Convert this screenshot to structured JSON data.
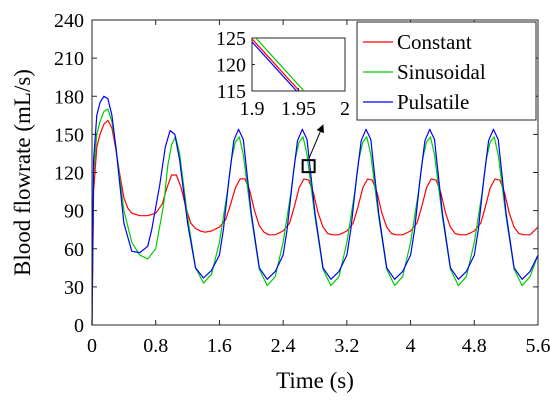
{
  "chart_data": {
    "type": "line",
    "xlabel": "Time (s)",
    "ylabel": "Blood flowrate (mL/s)",
    "xlim": [
      0,
      5.6
    ],
    "ylim": [
      0,
      240
    ],
    "xticks": [
      0,
      0.8,
      1.6,
      2.4,
      3.2,
      4,
      4.8,
      5.6
    ],
    "xtick_labels": [
      "0",
      "0.8",
      "1.6",
      "2.4",
      "3.2",
      "4",
      "4.8",
      "5.6"
    ],
    "yticks": [
      0,
      30,
      60,
      90,
      120,
      150,
      180,
      210,
      240
    ],
    "ytick_labels": [
      "0",
      "30",
      "60",
      "90",
      "120",
      "150",
      "180",
      "210",
      "240"
    ],
    "grid": false,
    "legend_position": "top-right",
    "series": [
      {
        "name": "Constant",
        "color": "#ff0000",
        "x": [
          0,
          0.02,
          0.06,
          0.1,
          0.15,
          0.2,
          0.25,
          0.3,
          0.35,
          0.4,
          0.45,
          0.5,
          0.55,
          0.6,
          0.7,
          0.8,
          0.88,
          0.94,
          1.0,
          1.06,
          1.12,
          1.18,
          1.24,
          1.3,
          1.36,
          1.42,
          1.5,
          1.6,
          1.68,
          1.74,
          1.8,
          1.86,
          1.92,
          1.98,
          2.04,
          2.1,
          2.16,
          2.22,
          2.3,
          2.4,
          2.48,
          2.54,
          2.6,
          2.66,
          2.72,
          2.78,
          2.84,
          2.9,
          2.96,
          3.02,
          3.1,
          3.2,
          3.28,
          3.34,
          3.4,
          3.46,
          3.52,
          3.58,
          3.64,
          3.7,
          3.76,
          3.82,
          3.9,
          4.0,
          4.08,
          4.14,
          4.2,
          4.26,
          4.32,
          4.38,
          4.44,
          4.5,
          4.56,
          4.62,
          4.7,
          4.8,
          4.88,
          4.94,
          5.0,
          5.06,
          5.12,
          5.18,
          5.24,
          5.3,
          5.36,
          5.42,
          5.5,
          5.6
        ],
        "y": [
          0,
          105,
          140,
          150,
          158,
          161,
          155,
          138,
          118,
          100,
          92,
          88,
          87,
          86,
          86,
          88,
          95,
          108,
          118,
          118,
          108,
          92,
          80,
          76,
          74,
          73,
          74,
          77,
          83,
          95,
          108,
          115,
          115,
          106,
          90,
          78,
          73,
          71,
          71,
          74,
          80,
          93,
          108,
          115,
          114,
          104,
          88,
          77,
          72,
          71,
          71,
          74,
          80,
          93,
          108,
          115,
          114,
          104,
          88,
          77,
          72,
          71,
          71,
          74,
          80,
          93,
          108,
          115,
          114,
          104,
          88,
          77,
          72,
          71,
          71,
          74,
          80,
          93,
          108,
          115,
          114,
          104,
          88,
          77,
          72,
          71,
          71,
          77
        ]
      },
      {
        "name": "Sinusoidal",
        "color": "#00cc00",
        "x": [
          0,
          0.02,
          0.06,
          0.1,
          0.15,
          0.2,
          0.25,
          0.3,
          0.35,
          0.4,
          0.5,
          0.6,
          0.7,
          0.8,
          0.9,
          0.95,
          1.0,
          1.05,
          1.1,
          1.2,
          1.3,
          1.4,
          1.5,
          1.6,
          1.7,
          1.75,
          1.8,
          1.85,
          1.9,
          2.0,
          2.1,
          2.2,
          2.3,
          2.4,
          2.5,
          2.55,
          2.6,
          2.65,
          2.7,
          2.8,
          2.9,
          3.0,
          3.1,
          3.2,
          3.3,
          3.35,
          3.4,
          3.45,
          3.5,
          3.6,
          3.7,
          3.8,
          3.9,
          4.0,
          4.1,
          4.15,
          4.2,
          4.25,
          4.3,
          4.4,
          4.5,
          4.6,
          4.7,
          4.8,
          4.9,
          4.95,
          5.0,
          5.05,
          5.1,
          5.2,
          5.3,
          5.4,
          5.5,
          5.6
        ],
        "y": [
          0,
          120,
          150,
          160,
          168,
          170,
          160,
          140,
          115,
          90,
          65,
          55,
          52,
          60,
          95,
          125,
          142,
          148,
          135,
          85,
          45,
          33,
          40,
          65,
          105,
          130,
          144,
          148,
          134,
          85,
          44,
          31,
          38,
          65,
          105,
          130,
          144,
          148,
          134,
          85,
          44,
          31,
          38,
          65,
          105,
          130,
          144,
          148,
          134,
          85,
          44,
          31,
          38,
          65,
          105,
          130,
          144,
          148,
          134,
          85,
          44,
          31,
          38,
          65,
          105,
          130,
          144,
          148,
          134,
          85,
          44,
          31,
          38,
          55
        ]
      },
      {
        "name": "Pulsatile",
        "color": "#0000ff",
        "x": [
          0,
          0.02,
          0.06,
          0.1,
          0.15,
          0.2,
          0.25,
          0.3,
          0.35,
          0.4,
          0.5,
          0.6,
          0.7,
          0.75,
          0.85,
          0.92,
          0.98,
          1.04,
          1.1,
          1.2,
          1.3,
          1.4,
          1.5,
          1.6,
          1.65,
          1.72,
          1.78,
          1.84,
          1.9,
          2.0,
          2.1,
          2.2,
          2.3,
          2.4,
          2.45,
          2.52,
          2.58,
          2.64,
          2.7,
          2.8,
          2.9,
          3.0,
          3.1,
          3.2,
          3.25,
          3.32,
          3.38,
          3.44,
          3.5,
          3.6,
          3.7,
          3.8,
          3.9,
          4.0,
          4.05,
          4.12,
          4.18,
          4.24,
          4.3,
          4.4,
          4.5,
          4.6,
          4.7,
          4.8,
          4.85,
          4.92,
          4.98,
          5.04,
          5.1,
          5.2,
          5.3,
          5.4,
          5.5,
          5.6
        ],
        "y": [
          0,
          130,
          165,
          175,
          180,
          178,
          165,
          140,
          110,
          80,
          58,
          57,
          62,
          75,
          110,
          140,
          153,
          150,
          130,
          80,
          45,
          37,
          43,
          55,
          75,
          115,
          145,
          154,
          146,
          88,
          45,
          36,
          42,
          55,
          75,
          115,
          145,
          154,
          146,
          88,
          45,
          36,
          42,
          55,
          75,
          115,
          145,
          154,
          146,
          88,
          45,
          36,
          42,
          55,
          75,
          115,
          145,
          154,
          146,
          88,
          45,
          36,
          42,
          55,
          75,
          115,
          145,
          154,
          146,
          88,
          45,
          36,
          42,
          55
        ]
      }
    ],
    "inset": {
      "xlim": [
        1.9,
        2.0
      ],
      "ylim": [
        115,
        125
      ],
      "xticks": [
        1.9,
        1.95,
        2
      ],
      "xtick_labels": [
        "1.9",
        "1.95",
        "2"
      ],
      "yticks": [
        115,
        120,
        125
      ],
      "ytick_labels": [
        "115",
        "120",
        "125"
      ],
      "zoom_box": {
        "x": 2.72,
        "y": 125
      },
      "series": [
        {
          "name": "Constant",
          "x": [
            1.895,
            1.955
          ],
          "y": [
            125.8,
            114.2
          ]
        },
        {
          "name": "Sinusoidal",
          "x": [
            1.9,
            1.96
          ],
          "y": [
            125.8,
            114.2
          ]
        },
        {
          "name": "Pulsatile",
          "x": [
            1.892,
            1.952
          ],
          "y": [
            125.8,
            114.2
          ]
        }
      ]
    }
  }
}
